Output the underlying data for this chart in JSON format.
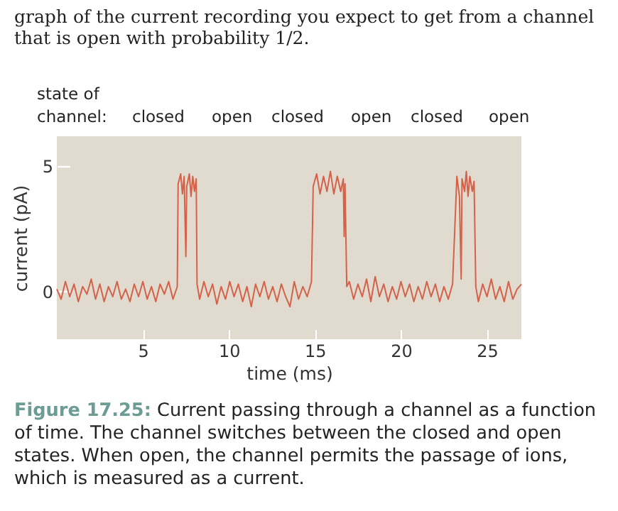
{
  "chart_data": {
    "type": "line",
    "xlabel": "time (ms)",
    "ylabel": "current (pA)",
    "xlim": [
      0,
      27
    ],
    "xticks": [
      5,
      10,
      15,
      20,
      25
    ],
    "ylim": [
      -1.9,
      6.2
    ],
    "yticks": [
      0,
      5
    ],
    "annotations": [
      "graph of the current recording you expect to get from a channel that is open with probability 1/2.",
      "state of",
      "channel:",
      "closed",
      "open",
      "closed",
      "open",
      "closed",
      "open",
      "Figure 17.25: Current passing through a channel as a function of time. The channel switches between the closed and open states. When open, the channel permits the passage of ions, which is measured as a current."
    ],
    "series": [
      {
        "color": "#d4624a",
        "x": [
          0,
          0.25,
          0.5,
          0.75,
          1,
          1.25,
          1.5,
          1.75,
          2,
          2.25,
          2.5,
          2.75,
          3,
          3.25,
          3.5,
          3.75,
          4,
          4.25,
          4.5,
          4.75,
          5,
          5.25,
          5.5,
          5.75,
          6,
          6.25,
          6.5,
          6.75,
          7,
          7.05,
          7.2,
          7.3,
          7.4,
          7.5,
          7.55,
          7.7,
          7.8,
          7.9,
          8,
          8.1,
          8.15,
          8.3,
          8.55,
          8.8,
          9.05,
          9.3,
          9.55,
          9.8,
          10.05,
          10.3,
          10.55,
          10.8,
          11.05,
          11.3,
          11.55,
          11.8,
          12.05,
          12.3,
          12.55,
          12.8,
          13.05,
          13.3,
          13.55,
          13.8,
          14.05,
          14.3,
          14.55,
          14.8,
          14.9,
          15.1,
          15.3,
          15.5,
          15.7,
          15.9,
          16.1,
          16.3,
          16.5,
          16.65,
          16.7,
          16.75,
          16.85,
          17,
          17.25,
          17.5,
          17.75,
          18,
          18.25,
          18.5,
          18.75,
          19,
          19.25,
          19.5,
          19.75,
          20,
          20.25,
          20.5,
          20.75,
          21,
          21.25,
          21.5,
          21.75,
          22,
          22.25,
          22.5,
          22.75,
          23,
          23.25,
          23.4,
          23.5,
          23.55,
          23.7,
          23.8,
          23.9,
          24,
          24.15,
          24.25,
          24.35,
          24.5,
          24.75,
          25,
          25.25,
          25.5,
          25.75,
          26,
          26.25,
          26.5,
          26.75,
          27
        ],
        "values": [
          0.1,
          -0.3,
          0.4,
          -0.2,
          0.3,
          -0.4,
          0.2,
          -0.1,
          0.5,
          -0.3,
          0.3,
          -0.4,
          0.2,
          -0.2,
          0.4,
          -0.3,
          0.1,
          -0.4,
          0.3,
          -0.2,
          0.4,
          -0.3,
          0.2,
          -0.4,
          0.3,
          -0.1,
          0.4,
          -0.3,
          0.2,
          4.3,
          4.7,
          3.9,
          4.6,
          1.4,
          4.2,
          4.7,
          3.8,
          4.6,
          4.0,
          4.5,
          0.3,
          -0.3,
          0.4,
          -0.2,
          0.3,
          -0.5,
          0.2,
          -0.3,
          0.4,
          -0.2,
          0.3,
          -0.4,
          0.2,
          -0.6,
          0.3,
          -0.2,
          0.4,
          -0.3,
          0.2,
          -0.4,
          0.3,
          -0.2,
          -0.6,
          0.4,
          -0.3,
          0.2,
          -0.2,
          0.4,
          4.2,
          4.7,
          3.9,
          4.6,
          4.0,
          4.8,
          3.9,
          4.6,
          4.0,
          4.5,
          2.2,
          4.3,
          0.2,
          0.4,
          -0.3,
          0.3,
          -0.2,
          0.5,
          -0.4,
          0.6,
          -0.2,
          0.3,
          -0.4,
          0.2,
          -0.3,
          0.4,
          -0.2,
          0.3,
          -0.4,
          0.2,
          -0.3,
          0.4,
          -0.2,
          0.3,
          -0.4,
          0.2,
          -0.3,
          0.3,
          4.6,
          3.8,
          0.5,
          4.5,
          4.0,
          4.8,
          3.8,
          4.6,
          4.0,
          4.4,
          0.2,
          -0.4,
          0.3,
          -0.2,
          0.5,
          -0.3,
          0.2,
          -0.4,
          0.4,
          -0.3,
          0.1,
          0.3
        ]
      }
    ]
  }
}
